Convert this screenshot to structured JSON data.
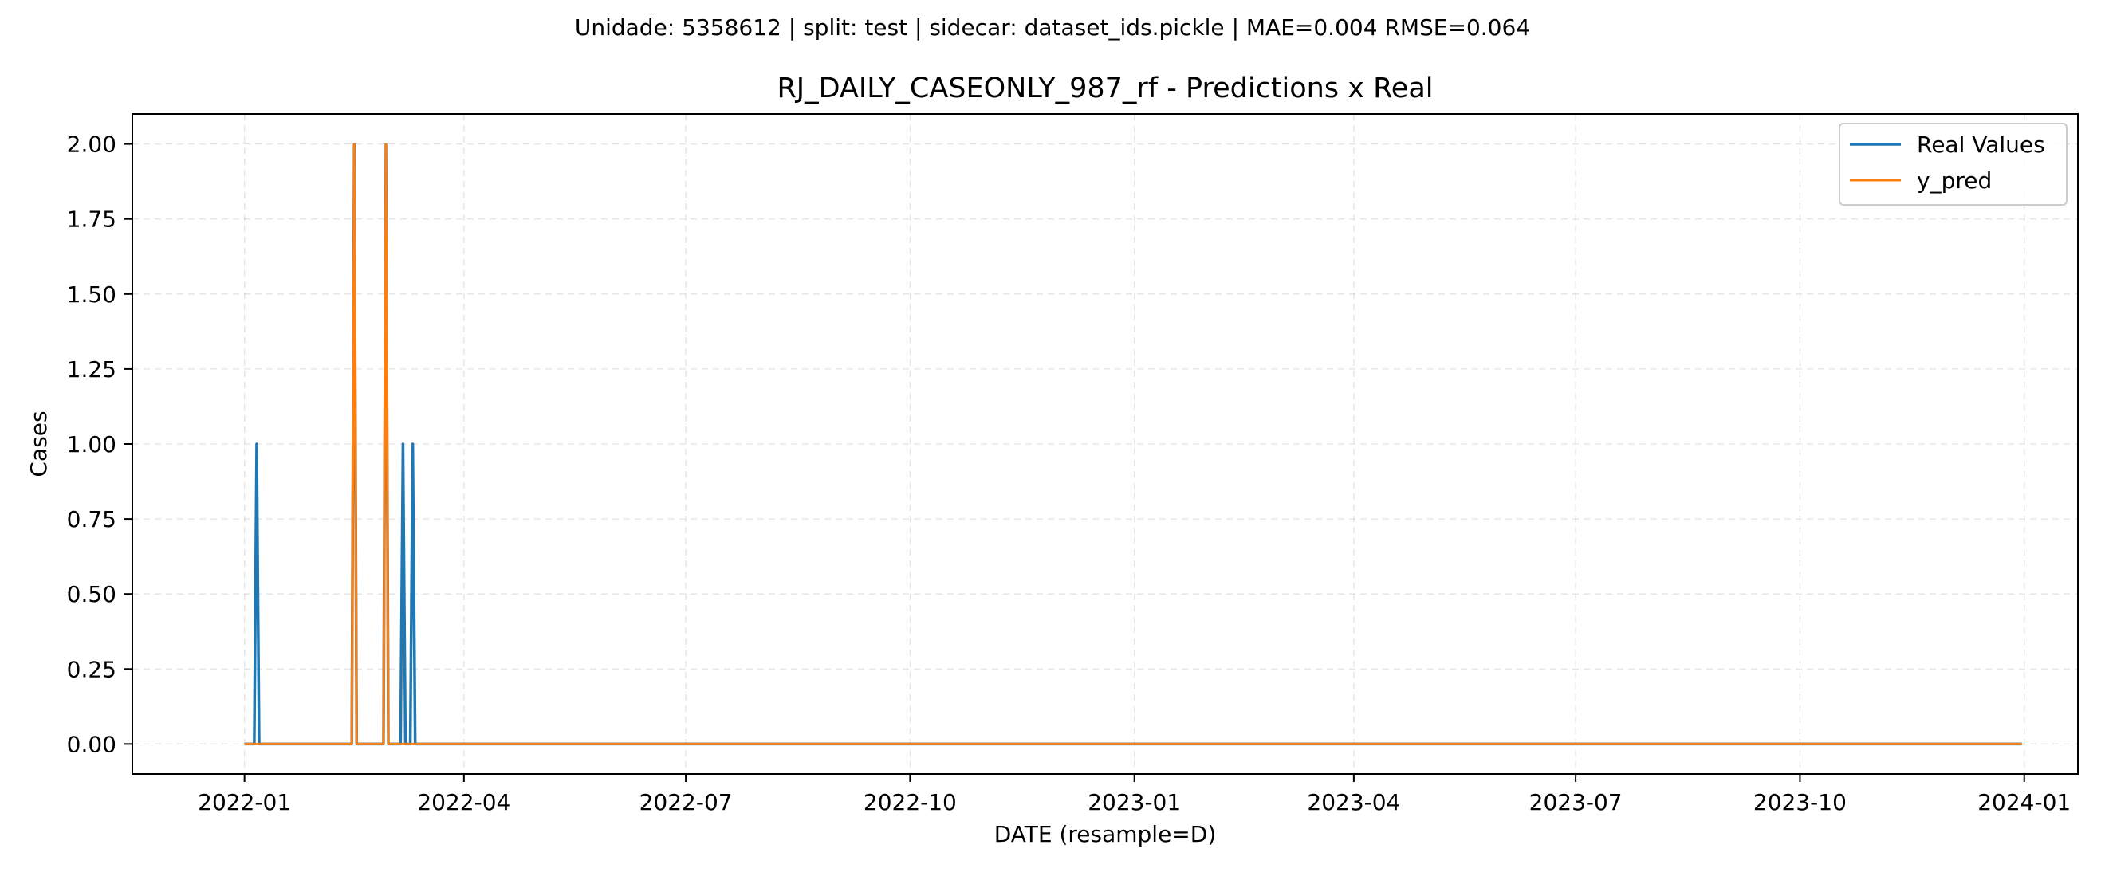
{
  "chart_data": {
    "type": "line",
    "suptitle": "Unidade: 5358612 | split: test | sidecar: dataset_ids.pickle | MAE=0.004  RMSE=0.064",
    "title": "RJ_DAILY_CASEONLY_987_rf - Predictions x Real",
    "xlabel": "DATE (resample=D)",
    "ylabel": "Cases",
    "x_range": [
      "2021-11-16",
      "2024-01-23"
    ],
    "ylim": [
      -0.1,
      2.1
    ],
    "grid": true,
    "legend_position": "top-right",
    "x_ticks": [
      {
        "date": "2022-01-01",
        "label": "2022-01"
      },
      {
        "date": "2022-04-01",
        "label": "2022-04"
      },
      {
        "date": "2022-07-01",
        "label": "2022-07"
      },
      {
        "date": "2022-10-01",
        "label": "2022-10"
      },
      {
        "date": "2023-01-01",
        "label": "2023-01"
      },
      {
        "date": "2023-04-01",
        "label": "2023-04"
      },
      {
        "date": "2023-07-01",
        "label": "2023-07"
      },
      {
        "date": "2023-10-01",
        "label": "2023-10"
      },
      {
        "date": "2024-01-01",
        "label": "2024-01"
      }
    ],
    "y_ticks": [
      {
        "value": 0.0,
        "label": "0.00"
      },
      {
        "value": 0.25,
        "label": "0.25"
      },
      {
        "value": 0.5,
        "label": "0.50"
      },
      {
        "value": 0.75,
        "label": "0.75"
      },
      {
        "value": 1.0,
        "label": "1.00"
      },
      {
        "value": 1.25,
        "label": "1.25"
      },
      {
        "value": 1.5,
        "label": "1.50"
      },
      {
        "value": 1.75,
        "label": "1.75"
      },
      {
        "value": 2.0,
        "label": "2.00"
      }
    ],
    "date_range": [
      "2022-01-01",
      "2023-12-31"
    ],
    "series": [
      {
        "name": "Real Values",
        "color": "#1f77b4",
        "default": 0,
        "points": [
          {
            "date": "2022-01-06",
            "value": 1
          },
          {
            "date": "2022-02-15",
            "value": 2
          },
          {
            "date": "2022-02-28",
            "value": 2
          },
          {
            "date": "2022-03-07",
            "value": 1
          },
          {
            "date": "2022-03-11",
            "value": 1
          }
        ]
      },
      {
        "name": "y_pred",
        "color": "#ff7f0e",
        "default": 0,
        "points": [
          {
            "date": "2022-02-15",
            "value": 2
          },
          {
            "date": "2022-02-28",
            "value": 2
          }
        ]
      }
    ]
  }
}
